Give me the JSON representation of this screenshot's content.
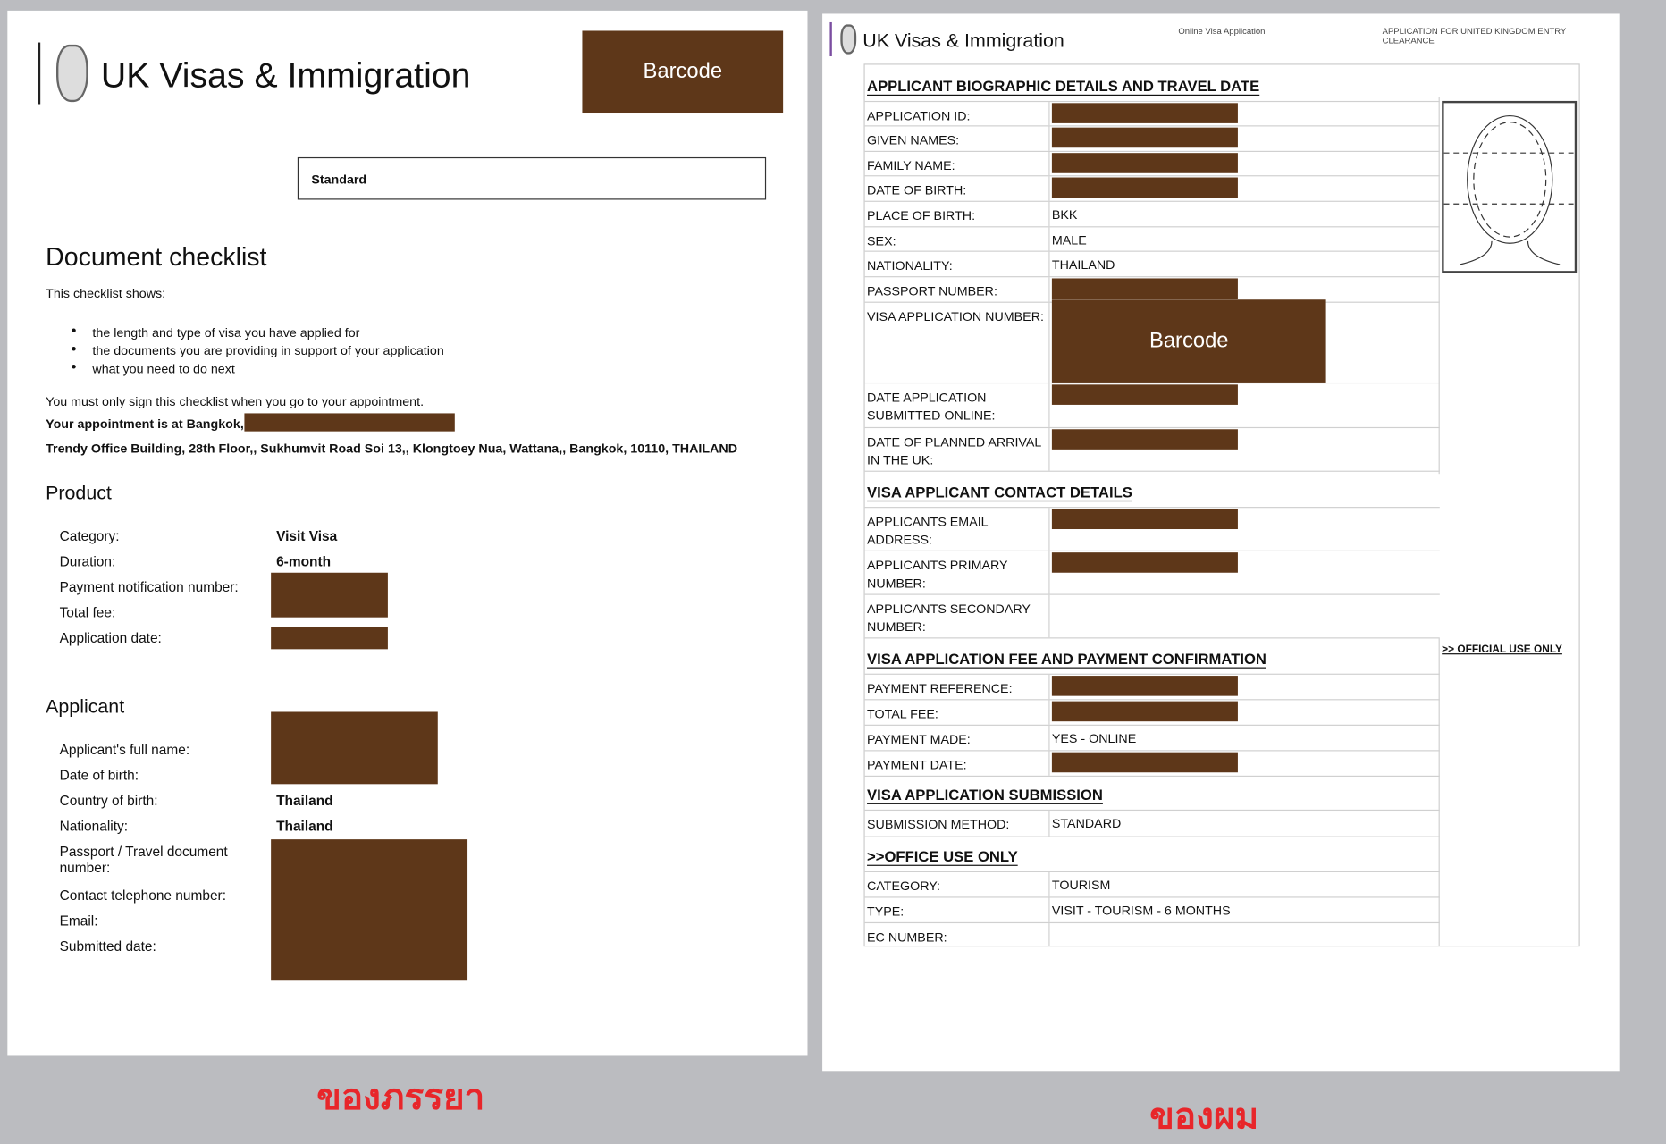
{
  "left": {
    "brand": "UK Visas & Immigration",
    "barcode": "Barcode",
    "standard": "Standard",
    "title": "Document checklist",
    "intro": "This checklist shows:",
    "bullets": [
      "the length and type of visa you have applied for",
      "the documents you are providing in support of your application",
      "what you need to do next"
    ],
    "sign_note": "You must only sign this checklist when you go to your appointment.",
    "appointment": "Your appointment is at Bangkok, on",
    "address": "Trendy Office Building, 28th Floor,, Sukhumvit Road Soi 13,, Klongtoey Nua, Wattana,, Bangkok, 10110, THAILAND",
    "product_heading": "Product",
    "product": {
      "category_label": "Category:",
      "category": "Visit Visa",
      "duration_label": "Duration:",
      "duration": "6-month",
      "payment_label": "Payment notification number:",
      "fee_label": "Total fee:",
      "date_label": "Application date:"
    },
    "applicant_heading": "Applicant",
    "applicant": {
      "name_label": "Applicant's full name:",
      "dob_label": "Date of birth:",
      "cob_label": "Country of birth:",
      "cob": "Thailand",
      "nat_label": "Nationality:",
      "nat": "Thailand",
      "passport_label": "Passport / Travel document number:",
      "phone_label": "Contact telephone number:",
      "email_label": "Email:",
      "submitted_label": "Submitted date:"
    },
    "caption": "ของภรรยา"
  },
  "right": {
    "brand": "UK Visas & Immigration",
    "subtitle": "Online Visa Application",
    "heading_right": "APPLICATION FOR UNITED KINGDOM ENTRY CLEARANCE",
    "official_use": ">> OFFICIAL USE ONLY",
    "barcode": "Barcode",
    "sections": [
      {
        "title": "APPLICANT BIOGRAPHIC DETAILS AND TRAVEL DATE",
        "rows": [
          {
            "label": "APPLICATION ID:",
            "value": null
          },
          {
            "label": "GIVEN NAMES:",
            "value": null
          },
          {
            "label": "FAMILY NAME:",
            "value": null
          },
          {
            "label": "DATE OF BIRTH:",
            "value": null
          },
          {
            "label": "PLACE OF BIRTH:",
            "value": "BKK"
          },
          {
            "label": "SEX:",
            "value": "MALE"
          },
          {
            "label": "NATIONALITY:",
            "value": "THAILAND"
          },
          {
            "label": "PASSPORT NUMBER:",
            "value": null
          },
          {
            "label": "VISA APPLICATION NUMBER:",
            "value": "barcode"
          },
          {
            "label": "DATE APPLICATION SUBMITTED ONLINE:",
            "value": null
          },
          {
            "label": "DATE OF PLANNED ARRIVAL IN THE UK:",
            "value": null
          }
        ]
      },
      {
        "title": "VISA APPLICANT CONTACT DETAILS",
        "rows": [
          {
            "label": "APPLICANTS EMAIL ADDRESS:",
            "value": null
          },
          {
            "label": "APPLICANTS PRIMARY NUMBER:",
            "value": null
          },
          {
            "label": "APPLICANTS SECONDARY NUMBER:",
            "value": ""
          }
        ]
      },
      {
        "title": "VISA APPLICATION FEE AND PAYMENT CONFIRMATION",
        "rows": [
          {
            "label": "PAYMENT REFERENCE:",
            "value": null
          },
          {
            "label": "TOTAL FEE:",
            "value": null
          },
          {
            "label": "PAYMENT MADE:",
            "value": "YES - ONLINE"
          },
          {
            "label": "PAYMENT DATE:",
            "value": null
          }
        ]
      },
      {
        "title": "VISA APPLICATION SUBMISSION",
        "rows": [
          {
            "label": "SUBMISSION METHOD:",
            "value": "STANDARD"
          }
        ]
      },
      {
        "title": ">>OFFICE USE ONLY",
        "rows": [
          {
            "label": "CATEGORY:",
            "value": "TOURISM"
          },
          {
            "label": "TYPE:",
            "value": "VISIT - TOURISM - 6 MONTHS"
          },
          {
            "label": "EC NUMBER:",
            "value": ""
          }
        ]
      }
    ],
    "caption": "ของผม",
    "redaction_color": "#5e3719",
    "caption_color": "#e8262a"
  }
}
